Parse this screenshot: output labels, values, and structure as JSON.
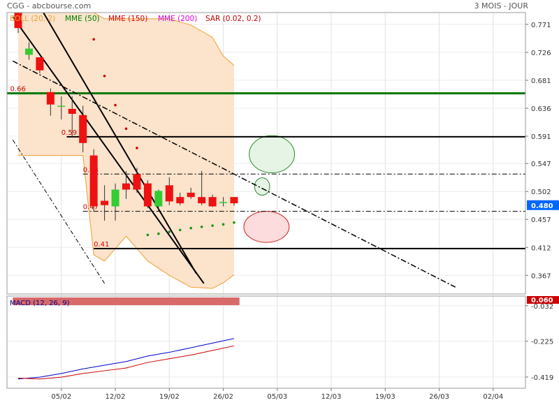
{
  "header": {
    "title": "CGG - abcbourse.com",
    "period": "3 MOIS - JOUR"
  },
  "legend": [
    {
      "label": "BOLL (20, 2)",
      "color": "#f0a030"
    },
    {
      "label": "MME (50)",
      "color": "#008000"
    },
    {
      "label": "MME (150)",
      "color": "#e00000"
    },
    {
      "label": "MME (200)",
      "color": "#e000e0"
    },
    {
      "label": "SAR (0.02, 0.2)",
      "color": "#c00000"
    }
  ],
  "colors": {
    "up": "#33cc33",
    "down": "#ee1111",
    "boll_fill": "#fbe3cc",
    "boll_line": "#f0a030",
    "green_level": "#007700",
    "macd_line": "#0000cc",
    "signal_line": "#cc0000",
    "sar": "#cc0000"
  },
  "chart_data": [
    {
      "type": "candlestick",
      "title": "CGG",
      "ylim": [
        0.337,
        0.79
      ],
      "y_ticks": [
        "0.771",
        "0.726",
        "0.681",
        "0.636",
        "0.591",
        "0.547",
        "0.502",
        "0.457",
        "0.412",
        "0.367"
      ],
      "x_tick_labels": [
        "05/02",
        "12/02",
        "19/02",
        "26/02",
        "05/03",
        "12/03",
        "19/03",
        "26/03",
        "02/04"
      ],
      "x_tick_days": [
        4,
        9,
        14,
        19,
        24,
        29,
        34,
        39,
        44
      ],
      "last_price": "0.480",
      "candles": [
        {
          "d": 0,
          "o": 0.79,
          "h": 0.8,
          "l": 0.757,
          "c": 0.765
        },
        {
          "d": 1,
          "o": 0.722,
          "h": 0.742,
          "l": 0.714,
          "c": 0.732
        },
        {
          "d": 2,
          "o": 0.718,
          "h": 0.718,
          "l": 0.692,
          "c": 0.697
        },
        {
          "d": 3,
          "o": 0.662,
          "h": 0.668,
          "l": 0.624,
          "c": 0.642
        },
        {
          "d": 4,
          "o": 0.64,
          "h": 0.655,
          "l": 0.618,
          "c": 0.64
        },
        {
          "d": 5,
          "o": 0.635,
          "h": 0.655,
          "l": 0.59,
          "c": 0.627
        },
        {
          "d": 6,
          "o": 0.625,
          "h": 0.64,
          "l": 0.565,
          "c": 0.58
        },
        {
          "d": 7,
          "o": 0.56,
          "h": 0.57,
          "l": 0.47,
          "c": 0.478
        },
        {
          "d": 8,
          "o": 0.487,
          "h": 0.512,
          "l": 0.455,
          "c": 0.48
        },
        {
          "d": 9,
          "o": 0.478,
          "h": 0.515,
          "l": 0.455,
          "c": 0.505
        },
        {
          "d": 10,
          "o": 0.515,
          "h": 0.535,
          "l": 0.49,
          "c": 0.505
        },
        {
          "d": 11,
          "o": 0.53,
          "h": 0.54,
          "l": 0.5,
          "c": 0.505
        },
        {
          "d": 12,
          "o": 0.515,
          "h": 0.52,
          "l": 0.475,
          "c": 0.478
        },
        {
          "d": 13,
          "o": 0.478,
          "h": 0.505,
          "l": 0.47,
          "c": 0.503
        },
        {
          "d": 14,
          "o": 0.512,
          "h": 0.525,
          "l": 0.48,
          "c": 0.486
        },
        {
          "d": 15,
          "o": 0.493,
          "h": 0.5,
          "l": 0.48,
          "c": 0.483
        },
        {
          "d": 16,
          "o": 0.5,
          "h": 0.508,
          "l": 0.49,
          "c": 0.493
        },
        {
          "d": 17,
          "o": 0.493,
          "h": 0.535,
          "l": 0.48,
          "c": 0.483
        },
        {
          "d": 18,
          "o": 0.493,
          "h": 0.497,
          "l": 0.477,
          "c": 0.478
        },
        {
          "d": 19,
          "o": 0.485,
          "h": 0.493,
          "l": 0.478,
          "c": 0.485
        },
        {
          "d": 20,
          "o": 0.493,
          "h": 0.493,
          "l": 0.479,
          "c": 0.483
        }
      ],
      "bollinger": {
        "x": [
          0,
          2,
          4,
          6,
          7,
          8,
          10,
          12,
          14,
          16,
          18,
          19,
          20
        ],
        "upper": [
          0.86,
          0.85,
          0.83,
          0.8,
          0.79,
          0.78,
          0.78,
          0.78,
          0.78,
          0.77,
          0.75,
          0.72,
          0.705
        ],
        "lower": [
          0.56,
          0.56,
          0.56,
          0.56,
          0.4,
          0.39,
          0.43,
          0.39,
          0.367,
          0.348,
          0.346,
          0.355,
          0.368
        ]
      },
      "sar": {
        "x": [
          7,
          8,
          9,
          10,
          11,
          12,
          13,
          14,
          15,
          16,
          17,
          18,
          19,
          20
        ],
        "y": [
          0.747,
          0.688,
          0.641,
          0.603,
          0.572,
          0.432,
          0.434,
          0.437,
          0.44,
          0.443,
          0.445,
          0.447,
          0.449,
          0.452
        ]
      },
      "levels": [
        {
          "value": 0.66,
          "label": "0.66",
          "style": "green"
        },
        {
          "value": 0.59,
          "label": "0.59",
          "style": "solid"
        },
        {
          "value": 0.53,
          "label": "0.53",
          "style": "dashdot"
        },
        {
          "value": 0.47,
          "label": "0.47",
          "style": "dashdot"
        },
        {
          "value": 0.41,
          "label": "0.41",
          "style": "solid"
        }
      ],
      "trendlines": [
        {
          "from": [
            -0.5,
            0.783
          ],
          "to": [
            17.2,
            0.354
          ],
          "style": "solid"
        },
        {
          "from": [
            2.0,
            0.8
          ],
          "to": [
            16.5,
            0.37
          ],
          "style": "solid"
        },
        {
          "from": [
            -0.5,
            0.712
          ],
          "to": [
            40.5,
            0.348
          ],
          "style": "dashdot"
        },
        {
          "from": [
            -0.5,
            0.585
          ],
          "to": [
            8.0,
            0.354
          ],
          "style": "dashdot-thin"
        }
      ],
      "ellipses": [
        {
          "cx": 23.5,
          "cy": 0.562,
          "rx": 2.1,
          "ry": 0.03,
          "fill": "#e6f4e6",
          "stroke": "#2a8a2a"
        },
        {
          "cx": 22.6,
          "cy": 0.51,
          "rx": 0.7,
          "ry": 0.014,
          "fill": "#e6f4e6",
          "stroke": "#2a8a2a"
        },
        {
          "cx": 23.0,
          "cy": 0.445,
          "rx": 2.1,
          "ry": 0.025,
          "fill": "#fcdcdc",
          "stroke": "#d02020"
        }
      ]
    },
    {
      "type": "line",
      "title": "MACD (12, 26, 9)",
      "ylim": [
        -0.48,
        -0.01
      ],
      "y_ticks": [
        "-0.032",
        "-0.225",
        "-0.419"
      ],
      "last_value": "0.060",
      "series": [
        {
          "name": "MACD",
          "x": [
            0,
            2,
            4,
            6,
            8,
            10,
            12,
            14,
            16,
            18,
            20
          ],
          "y": [
            -0.43,
            -0.42,
            -0.4,
            -0.375,
            -0.355,
            -0.335,
            -0.305,
            -0.285,
            -0.26,
            -0.235,
            -0.21
          ]
        },
        {
          "name": "Signal",
          "x": [
            0,
            2,
            4,
            6,
            8,
            10,
            12,
            14,
            16,
            18,
            20
          ],
          "y": [
            -0.425,
            -0.43,
            -0.42,
            -0.4,
            -0.385,
            -0.37,
            -0.34,
            -0.32,
            -0.3,
            -0.275,
            -0.25
          ]
        }
      ]
    }
  ]
}
